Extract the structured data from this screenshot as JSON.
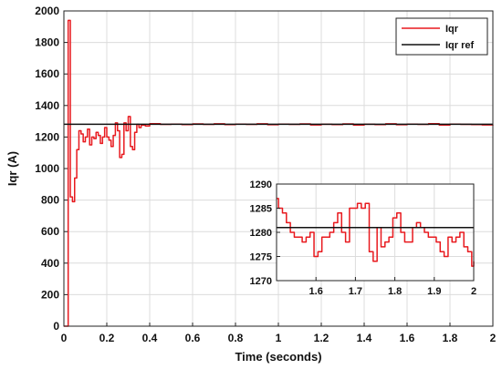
{
  "chart_data": [
    {
      "type": "line",
      "title": "",
      "xlabel": "Time (seconds)",
      "ylabel": "Iqr (A)",
      "xlim": [
        0,
        2
      ],
      "ylim": [
        0,
        2000
      ],
      "x_ticks": [
        "0",
        "0.2",
        "0.4",
        "0.6",
        "0.8",
        "1",
        "1.2",
        "1.4",
        "1.6",
        "1.8",
        "2"
      ],
      "y_ticks": [
        "0",
        "200",
        "400",
        "600",
        "800",
        "1000",
        "1200",
        "1400",
        "1600",
        "1800",
        "2000"
      ],
      "grid": true,
      "legend_position": "top-right",
      "series": [
        {
          "name": "Iqr",
          "color": "#e8191e",
          "step": true,
          "x": [
            0,
            0.02,
            0.03,
            0.04,
            0.05,
            0.06,
            0.07,
            0.08,
            0.09,
            0.1,
            0.11,
            0.12,
            0.13,
            0.14,
            0.15,
            0.16,
            0.17,
            0.18,
            0.19,
            0.2,
            0.21,
            0.22,
            0.23,
            0.24,
            0.25,
            0.26,
            0.27,
            0.28,
            0.29,
            0.3,
            0.31,
            0.32,
            0.33,
            0.34,
            0.35,
            0.36,
            0.38,
            0.4,
            0.45,
            0.5,
            0.55,
            0.6,
            0.65,
            0.7,
            0.75,
            0.8,
            0.85,
            0.9,
            0.95,
            1.0,
            1.05,
            1.1,
            1.15,
            1.2,
            1.25,
            1.3,
            1.35,
            1.4,
            1.45,
            1.5,
            1.55,
            1.6,
            1.65,
            1.7,
            1.75,
            1.8,
            1.85,
            1.9,
            1.95,
            2.0
          ],
          "values": [
            0,
            1940,
            820,
            790,
            940,
            1120,
            1240,
            1220,
            1170,
            1200,
            1250,
            1150,
            1200,
            1190,
            1230,
            1210,
            1160,
            1200,
            1260,
            1200,
            1180,
            1140,
            1210,
            1290,
            1240,
            1070,
            1090,
            1290,
            1240,
            1330,
            1140,
            1120,
            1230,
            1280,
            1260,
            1275,
            1270,
            1285,
            1280,
            1282,
            1279,
            1283,
            1280,
            1284,
            1279,
            1282,
            1280,
            1284,
            1278,
            1282,
            1280,
            1283,
            1277,
            1281,
            1279,
            1283,
            1276,
            1281,
            1279,
            1284,
            1278,
            1282,
            1280,
            1285,
            1276,
            1282,
            1280,
            1279,
            1277,
            1274
          ]
        },
        {
          "name": "Iqr ref",
          "color": "#111111",
          "x": [
            0,
            2
          ],
          "values": [
            1281,
            1281
          ]
        }
      ]
    },
    {
      "type": "line",
      "title": "",
      "xlabel": "",
      "ylabel": "",
      "xlim": [
        1.5,
        2.0
      ],
      "ylim": [
        1270,
        1290
      ],
      "x_ticks": [
        "1.6",
        "1.7",
        "1.8",
        "1.9",
        "2"
      ],
      "y_ticks": [
        "1270",
        "1275",
        "1280",
        "1285",
        "1290"
      ],
      "grid": true,
      "series": [
        {
          "name": "Iqr",
          "color": "#e8191e",
          "step": true,
          "x": [
            1.5,
            1.505,
            1.515,
            1.525,
            1.535,
            1.545,
            1.555,
            1.565,
            1.575,
            1.585,
            1.595,
            1.605,
            1.615,
            1.625,
            1.635,
            1.645,
            1.655,
            1.665,
            1.675,
            1.685,
            1.695,
            1.705,
            1.715,
            1.725,
            1.735,
            1.745,
            1.755,
            1.765,
            1.775,
            1.785,
            1.795,
            1.805,
            1.815,
            1.825,
            1.835,
            1.845,
            1.855,
            1.865,
            1.875,
            1.885,
            1.895,
            1.905,
            1.915,
            1.925,
            1.935,
            1.945,
            1.955,
            1.965,
            1.975,
            1.985,
            1.995,
            2.0
          ],
          "values": [
            1287,
            1285,
            1284,
            1282,
            1280,
            1279,
            1279,
            1278,
            1279,
            1280,
            1275,
            1276,
            1279,
            1279,
            1280,
            1282,
            1284,
            1280,
            1278,
            1285,
            1285,
            1286,
            1285,
            1286,
            1276,
            1274,
            1281,
            1277,
            1278,
            1279,
            1283,
            1284,
            1280,
            1278,
            1278,
            1281,
            1282,
            1281,
            1280,
            1279,
            1279,
            1278,
            1276,
            1275,
            1279,
            1278,
            1279,
            1280,
            1277,
            1276,
            1273,
            1274
          ]
        },
        {
          "name": "Iqr ref",
          "color": "#111111",
          "x": [
            1.5,
            2.0
          ],
          "values": [
            1281,
            1281
          ]
        }
      ]
    }
  ]
}
